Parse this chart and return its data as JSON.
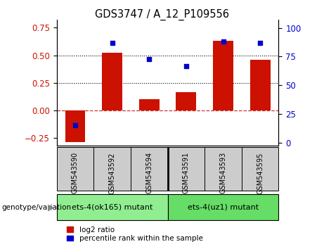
{
  "title": "GDS3747 / A_12_P109556",
  "samples": [
    "GSM543590",
    "GSM543592",
    "GSM543594",
    "GSM543591",
    "GSM543593",
    "GSM543595"
  ],
  "log2_ratio": [
    -0.285,
    0.52,
    0.1,
    0.165,
    0.63,
    0.46
  ],
  "percentile_rank": [
    15,
    87,
    73,
    67,
    88,
    87
  ],
  "groups": [
    {
      "label": "ets-4(ok165) mutant",
      "indices": [
        0,
        1,
        2
      ],
      "color": "#90ee90"
    },
    {
      "label": "ets-4(uz1) mutant",
      "indices": [
        3,
        4,
        5
      ],
      "color": "#66dd66"
    }
  ],
  "bar_color": "#cc1100",
  "dot_color": "#0000cc",
  "ylim_left": [
    -0.32,
    0.82
  ],
  "ylim_right": [
    -2.67,
    107
  ],
  "yticks_left": [
    -0.25,
    0.0,
    0.25,
    0.5,
    0.75
  ],
  "yticks_right": [
    0,
    25,
    50,
    75,
    100
  ],
  "hlines": [
    0.0,
    0.25,
    0.5
  ],
  "bar_width": 0.55,
  "legend_items": [
    {
      "label": "log2 ratio",
      "color": "#cc1100"
    },
    {
      "label": "percentile rank within the sample",
      "color": "#0000cc"
    }
  ]
}
